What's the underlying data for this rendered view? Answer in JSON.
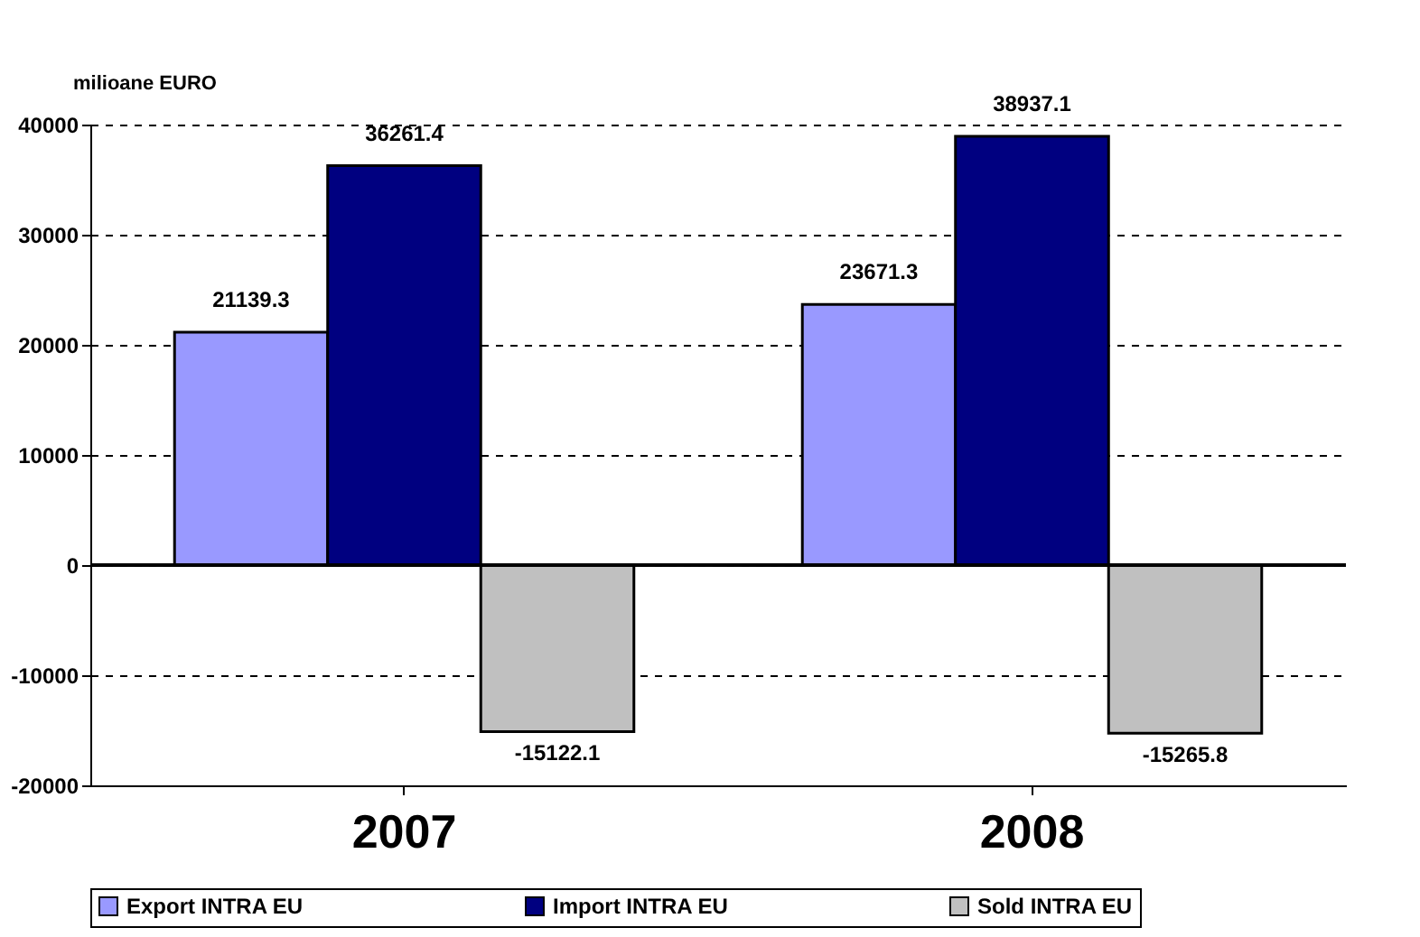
{
  "chart_data": {
    "type": "bar",
    "ylabel": "milioane EURO",
    "categories": [
      "2007",
      "2008"
    ],
    "series": [
      {
        "name": "Export INTRA EU",
        "color": "#9999ff",
        "values": [
          21139.3,
          23671.3
        ]
      },
      {
        "name": "Import INTRA EU",
        "color": "#000080",
        "values": [
          36261.4,
          38937.1
        ]
      },
      {
        "name": "Sold INTRA EU",
        "color": "#c0c0c0",
        "values": [
          -15122.1,
          -15265.8
        ]
      }
    ],
    "ylim": [
      -20000,
      40000
    ],
    "yticks": [
      -20000,
      -10000,
      0,
      10000,
      20000,
      30000,
      40000
    ],
    "grid": "y",
    "legend": "bottom",
    "data_labels": true
  }
}
